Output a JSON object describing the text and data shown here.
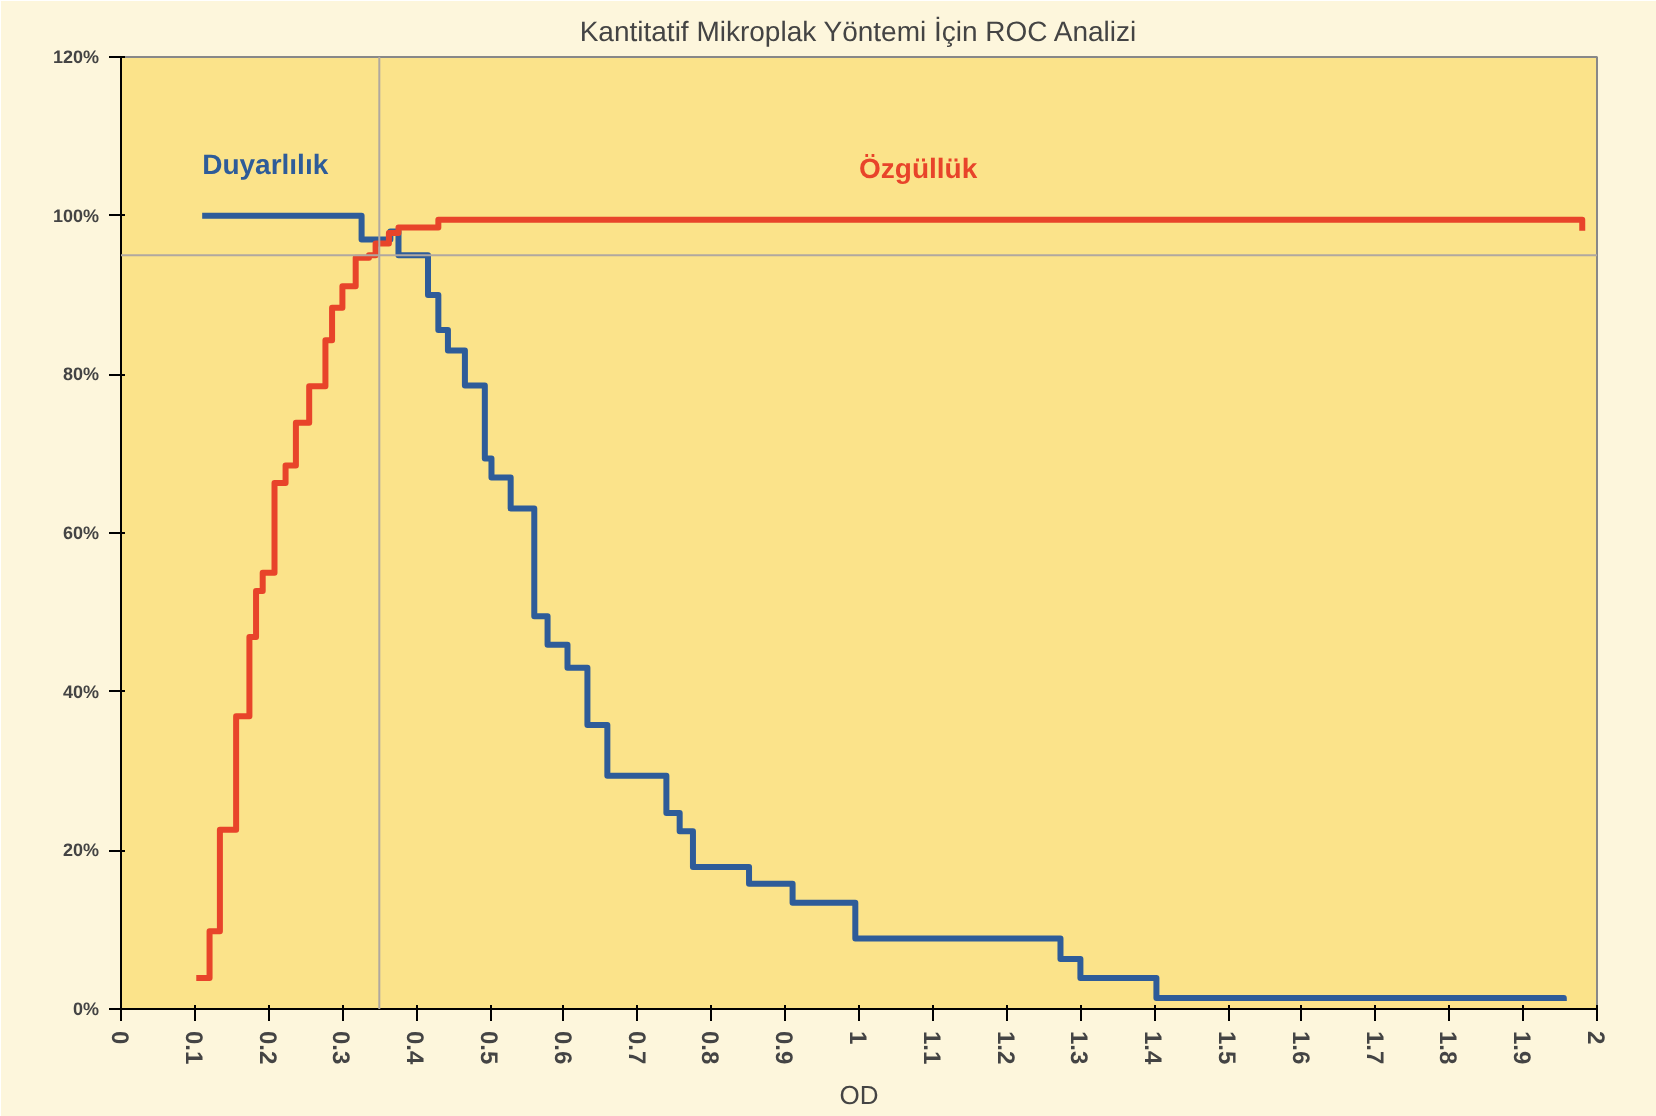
{
  "chart_data": {
    "type": "step",
    "title": "Kantitatif Mikroplak Yöntemi İçin ROC Analizi",
    "xlabel": "OD",
    "xlim": [
      0,
      2
    ],
    "xticks": [
      0,
      0.1,
      0.2,
      0.3,
      0.4,
      0.5,
      0.6,
      0.7,
      0.8,
      0.9,
      1,
      1.1,
      1.2,
      1.3,
      1.4,
      1.5,
      1.6,
      1.7,
      1.8,
      1.9,
      2
    ],
    "ylim": [
      0,
      120
    ],
    "yticks": [
      {
        "value": 0,
        "label": "0%"
      },
      {
        "value": 20,
        "label": "20%"
      },
      {
        "value": 40,
        "label": "40%"
      },
      {
        "value": 60,
        "label": "60%"
      },
      {
        "value": 80,
        "label": "80%"
      },
      {
        "value": 100,
        "label": "100%"
      },
      {
        "value": 120,
        "label": "120%"
      }
    ],
    "grid": false,
    "marker": "none",
    "line_style": "solid",
    "series": [
      {
        "name": "Duyarlılık",
        "color": "#2e5c99",
        "x": [
          0.11,
          0.318,
          0.326,
          0.358,
          0.365,
          0.376,
          0.403,
          0.416,
          0.43,
          0.443,
          0.466,
          0.493,
          0.502,
          0.528,
          0.56,
          0.578,
          0.605,
          0.632,
          0.659,
          0.726,
          0.739,
          0.757,
          0.775,
          0.843,
          0.851,
          0.902,
          0.91,
          0.968,
          0.995,
          1.264,
          1.273,
          1.291,
          1.3,
          1.396,
          1.403,
          1.955
        ],
        "values": [
          100,
          100,
          97,
          97,
          98,
          95,
          95,
          90,
          85.6,
          83,
          78.6,
          69.4,
          67,
          63.1,
          49.5,
          45.9,
          43,
          35.8,
          29.4,
          29.4,
          24.7,
          22.4,
          17.9,
          17.9,
          15.8,
          15.8,
          13.4,
          13.4,
          8.9,
          8.9,
          6.3,
          6.3,
          3.9,
          3.9,
          1.4,
          1
        ]
      },
      {
        "name": "Özgüllük",
        "color": "#e8442a",
        "x": [
          0.102,
          0.12,
          0.134,
          0.156,
          0.174,
          0.183,
          0.192,
          0.208,
          0.223,
          0.237,
          0.255,
          0.277,
          0.286,
          0.3,
          0.318,
          0.336,
          0.345,
          0.363,
          0.376,
          0.421,
          0.43,
          1.98
        ],
        "values": [
          3.9,
          9.8,
          22.6,
          36.9,
          46.9,
          52.7,
          55,
          66.3,
          68.5,
          73.9,
          78.5,
          84.3,
          88.4,
          91.1,
          94.7,
          95,
          96.5,
          97.8,
          98.5,
          98.5,
          99.5,
          98.1
        ]
      }
    ],
    "ref_lines": [
      {
        "axis": "y",
        "value": 95,
        "color": "#b0a8a0"
      },
      {
        "axis": "x",
        "value": 0.35,
        "color": "#b0a8a0"
      }
    ]
  }
}
